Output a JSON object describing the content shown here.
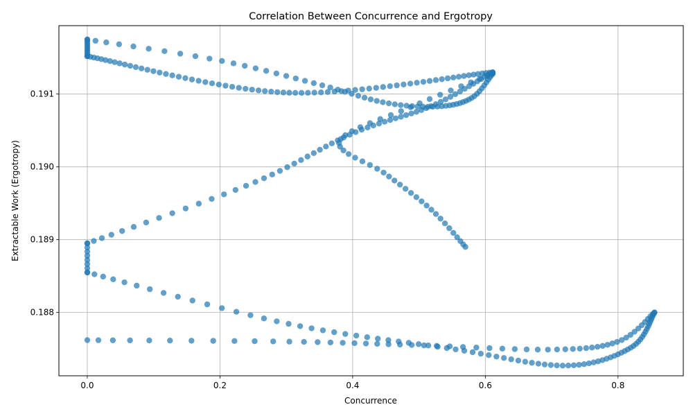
{
  "chart_data": {
    "type": "scatter",
    "title": "Correlation Between Concurrence and Ergotropy",
    "xlabel": "Concurrence",
    "ylabel": "Extractable Work (Ergotropy)",
    "xlim": [
      -0.0428,
      0.8984
    ],
    "ylim": [
      0.18713,
      0.19194
    ],
    "x_ticks": [
      0.0,
      0.2,
      0.4,
      0.6,
      0.8
    ],
    "x_tick_labels": [
      "0.0",
      "0.2",
      "0.4",
      "0.6",
      "0.8"
    ],
    "y_ticks": [
      0.188,
      0.189,
      0.19,
      0.191
    ],
    "y_tick_labels": [
      "0.188",
      "0.189",
      "0.190",
      "0.191"
    ],
    "grid": true,
    "marker_color": "#1f77b4",
    "marker_alpha": 0.7,
    "path_segments": [
      {
        "name": "upper-arc",
        "from": [
          0.0,
          0.19152
        ],
        "to": [
          0.611,
          0.1913
        ],
        "mid": [
          0.3,
          0.19102
        ],
        "count": 70
      },
      {
        "name": "upper-loop",
        "from": [
          0.611,
          0.1913
        ],
        "to": [
          0.0,
          0.18895
        ],
        "via": [
          [
            0.52,
            0.19084
          ],
          [
            0.4,
            0.19046
          ],
          [
            0.25,
            0.18978
          ]
        ],
        "count": 60
      },
      {
        "name": "left-bottom-vertical",
        "from": [
          0.0,
          0.18895
        ],
        "to": [
          0.0,
          0.18855
        ],
        "count": 8
      },
      {
        "name": "lower-arc",
        "from": [
          0.0,
          0.18855
        ],
        "to": [
          0.855,
          0.188
        ],
        "via": [
          [
            0.3,
            0.18785
          ],
          [
            0.55,
            0.1875
          ],
          [
            0.72,
            0.18727
          ],
          [
            0.82,
            0.18752
          ]
        ],
        "count": 80
      },
      {
        "name": "return-arc",
        "from": [
          0.855,
          0.188
        ],
        "to": [
          0.0,
          0.18762
        ],
        "via": [
          [
            0.8,
            0.1876
          ],
          [
            0.7,
            0.18749
          ],
          [
            0.5,
            0.18755
          ],
          [
            0.3,
            0.1876
          ]
        ],
        "count": 55
      },
      {
        "name": "top-left-vertical",
        "from": [
          0.0,
          0.19152
        ],
        "to": [
          0.0,
          0.19175
        ],
        "count": 10
      },
      {
        "name": "top-arc",
        "from": [
          0.0,
          0.19175
        ],
        "to": [
          0.611,
          0.19128
        ],
        "via": [
          [
            0.2,
            0.19146
          ],
          [
            0.35,
            0.19113
          ],
          [
            0.45,
            0.19088
          ],
          [
            0.53,
            0.19083
          ],
          [
            0.58,
            0.19095
          ]
        ],
        "count": 60
      },
      {
        "name": "descending-arm",
        "from": [
          0.611,
          0.19128
        ],
        "to": [
          0.57,
          0.1889
        ],
        "via": [
          [
            0.49,
            0.19083
          ],
          [
            0.38,
            0.19035
          ],
          [
            0.45,
            0.1899
          ],
          [
            0.52,
            0.1894
          ]
        ],
        "count": 45
      }
    ]
  }
}
